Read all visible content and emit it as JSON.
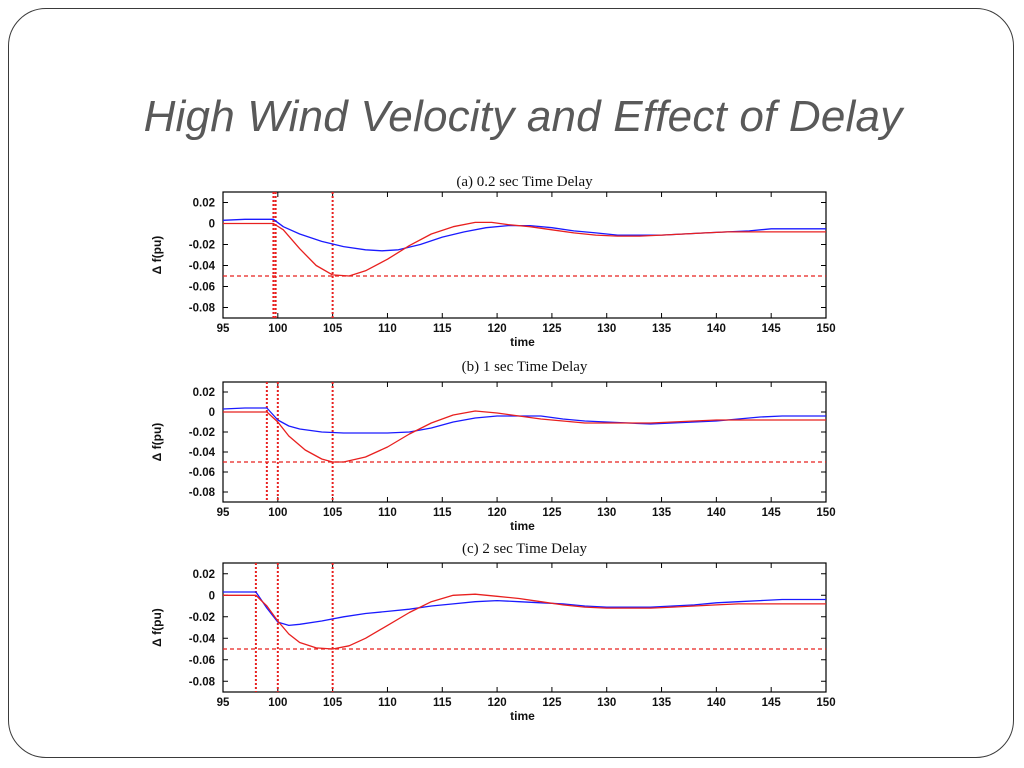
{
  "slide": {
    "title": "High Wind Velocity and Effect of Delay"
  },
  "colors": {
    "line_blue": "#1a1aff",
    "line_red": "#e8201f",
    "marker_red": "#e8201f",
    "axis": "#000000",
    "title_text": "#595959"
  },
  "chart_data": [
    {
      "type": "line",
      "title": "(a) 0.2 sec Time Delay",
      "xlabel": "time",
      "ylabel": "Δ f(pu)",
      "xlim": [
        95,
        150
      ],
      "ylim": [
        -0.09,
        0.03
      ],
      "xticks": [
        95,
        100,
        105,
        110,
        115,
        120,
        125,
        130,
        135,
        140,
        145,
        150
      ],
      "yticks": [
        0.02,
        0,
        -0.02,
        -0.04,
        -0.06,
        -0.08
      ],
      "ytick_labels": [
        "0.02",
        "0",
        "-0.02",
        "-0.04",
        "-0.06",
        "-0.08"
      ],
      "vlines": [
        99.6,
        99.8,
        105
      ],
      "hline": -0.05,
      "series": [
        {
          "color": "blue",
          "x": [
            95,
            97,
            99.6,
            100.5,
            102,
            104,
            106,
            108,
            109.5,
            111,
            113,
            115,
            117,
            119,
            121,
            123,
            125,
            127,
            129,
            131,
            133,
            135,
            137,
            139,
            141,
            143,
            145,
            147,
            150
          ],
          "y": [
            0.003,
            0.004,
            0.004,
            -0.003,
            -0.01,
            -0.017,
            -0.022,
            -0.025,
            -0.026,
            -0.025,
            -0.02,
            -0.013,
            -0.008,
            -0.004,
            -0.002,
            -0.002,
            -0.004,
            -0.007,
            -0.009,
            -0.011,
            -0.011,
            -0.011,
            -0.01,
            -0.009,
            -0.008,
            -0.007,
            -0.005,
            -0.005,
            -0.005
          ]
        },
        {
          "color": "red",
          "x": [
            95,
            97,
            99.6,
            100.5,
            102,
            103.5,
            105,
            106.5,
            108,
            110,
            112,
            114,
            116,
            118,
            119.5,
            121,
            123,
            125,
            127,
            129,
            131,
            133,
            135,
            137,
            139,
            141,
            143,
            145,
            147,
            150
          ],
          "y": [
            0.0,
            0.0,
            0.0,
            -0.006,
            -0.024,
            -0.04,
            -0.049,
            -0.05,
            -0.045,
            -0.034,
            -0.021,
            -0.01,
            -0.003,
            0.001,
            0.001,
            -0.001,
            -0.003,
            -0.006,
            -0.009,
            -0.011,
            -0.012,
            -0.012,
            -0.011,
            -0.01,
            -0.009,
            -0.008,
            -0.008,
            -0.008,
            -0.008,
            -0.008
          ]
        }
      ]
    },
    {
      "type": "line",
      "title": "(b) 1 sec Time Delay",
      "xlabel": "time",
      "ylabel": "Δ f(pu)",
      "xlim": [
        95,
        150
      ],
      "ylim": [
        -0.09,
        0.03
      ],
      "xticks": [
        95,
        100,
        105,
        110,
        115,
        120,
        125,
        130,
        135,
        140,
        145,
        150
      ],
      "yticks": [
        0.02,
        0,
        -0.02,
        -0.04,
        -0.06,
        -0.08
      ],
      "ytick_labels": [
        "0.02",
        "0",
        "-0.02",
        "-0.04",
        "-0.06",
        "-0.08"
      ],
      "vlines": [
        99,
        100,
        105
      ],
      "hline": -0.05,
      "series": [
        {
          "color": "blue",
          "x": [
            95,
            97,
            99,
            100,
            101,
            102,
            104,
            106,
            108,
            110,
            112,
            114,
            116,
            118,
            120,
            122,
            124,
            126,
            128,
            130,
            132,
            134,
            136,
            138,
            140,
            142,
            144,
            146,
            150
          ],
          "y": [
            0.003,
            0.004,
            0.004,
            -0.008,
            -0.014,
            -0.017,
            -0.02,
            -0.021,
            -0.021,
            -0.021,
            -0.02,
            -0.016,
            -0.01,
            -0.006,
            -0.004,
            -0.004,
            -0.004,
            -0.007,
            -0.009,
            -0.01,
            -0.011,
            -0.012,
            -0.011,
            -0.01,
            -0.009,
            -0.007,
            -0.005,
            -0.004,
            -0.004
          ]
        },
        {
          "color": "red",
          "x": [
            95,
            97,
            99,
            100,
            101,
            102.5,
            104,
            105,
            106,
            108,
            110,
            112,
            114,
            116,
            118,
            120,
            122,
            124,
            126,
            128,
            130,
            132,
            134,
            136,
            138,
            140,
            142,
            144,
            146,
            150
          ],
          "y": [
            0.0,
            0.0,
            0.0,
            -0.01,
            -0.024,
            -0.038,
            -0.047,
            -0.05,
            -0.05,
            -0.045,
            -0.035,
            -0.022,
            -0.011,
            -0.003,
            0.001,
            -0.001,
            -0.004,
            -0.007,
            -0.009,
            -0.011,
            -0.011,
            -0.011,
            -0.011,
            -0.01,
            -0.009,
            -0.008,
            -0.008,
            -0.008,
            -0.008,
            -0.008
          ]
        }
      ]
    },
    {
      "type": "line",
      "title": "(c) 2 sec Time Delay",
      "xlabel": "time",
      "ylabel": "Δ f(pu)",
      "xlim": [
        95,
        150
      ],
      "ylim": [
        -0.09,
        0.03
      ],
      "xticks": [
        95,
        100,
        105,
        110,
        115,
        120,
        125,
        130,
        135,
        140,
        145,
        150
      ],
      "yticks": [
        0.02,
        0,
        -0.02,
        -0.04,
        -0.06,
        -0.08
      ],
      "ytick_labels": [
        "0.02",
        "0",
        "-0.02",
        "-0.04",
        "-0.06",
        "-0.08"
      ],
      "vlines": [
        98,
        100,
        105
      ],
      "hline": -0.05,
      "series": [
        {
          "color": "blue",
          "x": [
            95,
            97,
            98,
            99,
            100,
            101,
            102,
            104,
            106,
            108,
            110,
            112,
            114,
            116,
            118,
            120,
            122,
            124,
            126,
            128,
            130,
            132,
            134,
            136,
            138,
            140,
            142,
            144,
            146,
            150
          ],
          "y": [
            0.003,
            0.003,
            0.003,
            -0.012,
            -0.025,
            -0.028,
            -0.027,
            -0.024,
            -0.02,
            -0.017,
            -0.015,
            -0.013,
            -0.01,
            -0.008,
            -0.006,
            -0.005,
            -0.006,
            -0.007,
            -0.008,
            -0.01,
            -0.011,
            -0.011,
            -0.011,
            -0.01,
            -0.009,
            -0.007,
            -0.006,
            -0.005,
            -0.004,
            -0.004
          ]
        },
        {
          "color": "red",
          "x": [
            95,
            97,
            98,
            99,
            100,
            101,
            102,
            103.5,
            105,
            106.5,
            108,
            110,
            112,
            114,
            116,
            118,
            120,
            122,
            124,
            126,
            128,
            130,
            132,
            134,
            136,
            138,
            140,
            142,
            144,
            146,
            150
          ],
          "y": [
            0.0,
            0.0,
            0.0,
            -0.01,
            -0.024,
            -0.036,
            -0.044,
            -0.049,
            -0.05,
            -0.047,
            -0.04,
            -0.028,
            -0.016,
            -0.006,
            0.0,
            0.001,
            -0.001,
            -0.003,
            -0.006,
            -0.009,
            -0.011,
            -0.012,
            -0.012,
            -0.012,
            -0.011,
            -0.01,
            -0.009,
            -0.008,
            -0.008,
            -0.008,
            -0.008
          ]
        }
      ]
    }
  ]
}
